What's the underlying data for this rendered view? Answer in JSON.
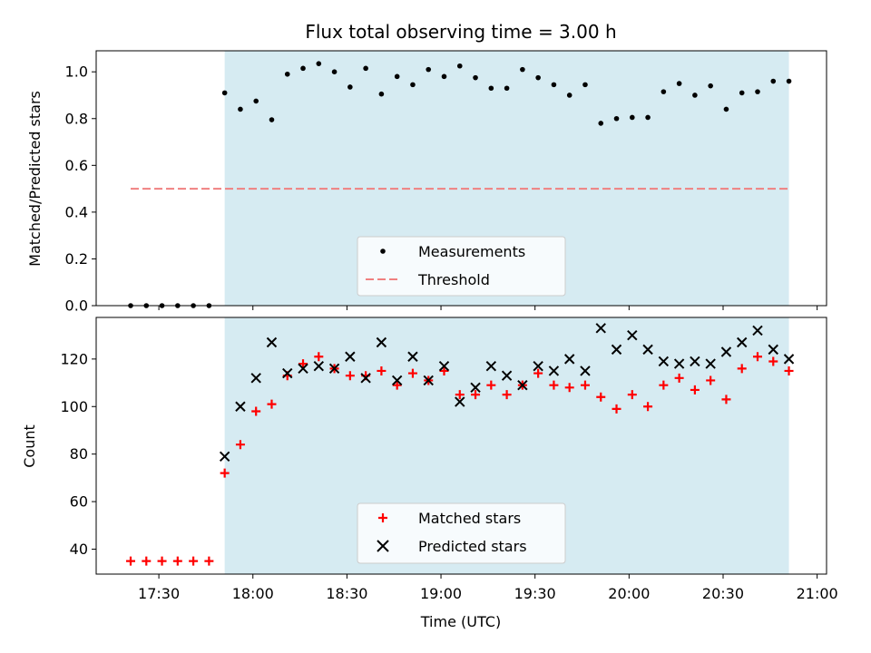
{
  "title": "Flux total observing time = 3.00 h",
  "colors": {
    "shade": "#add8e6",
    "measurement": "#000000",
    "threshold": "#f08080",
    "matched": "#ff0000",
    "predicted": "#000000"
  },
  "chart_data": [
    {
      "type": "scatter",
      "title": "Flux total observing time = 3.00 h",
      "xlabel": "",
      "ylabel": "Matched/Predicted stars",
      "xlim": [
        "17:10",
        "21:03"
      ],
      "ylim": [
        0,
        1.09
      ],
      "yticks": [
        "0.0",
        "0.2",
        "0.4",
        "0.6",
        "0.8",
        "1.0"
      ],
      "grid": false,
      "legend_position": "lower-center",
      "shaded_range": [
        "17:51",
        "20:51"
      ],
      "series": [
        {
          "name": "Measurements",
          "marker": "dot",
          "x": [
            "17:21",
            "17:26",
            "17:31",
            "17:36",
            "17:41",
            "17:46",
            "17:51",
            "17:56",
            "18:01",
            "18:06",
            "18:11",
            "18:16",
            "18:21",
            "18:26",
            "18:31",
            "18:36",
            "18:41",
            "18:46",
            "18:51",
            "18:56",
            "19:01",
            "19:06",
            "19:11",
            "19:16",
            "19:21",
            "19:26",
            "19:31",
            "19:36",
            "19:41",
            "19:46",
            "19:51",
            "19:56",
            "20:01",
            "20:06",
            "20:11",
            "20:16",
            "20:21",
            "20:26",
            "20:31",
            "20:36",
            "20:41",
            "20:46",
            "20:51"
          ],
          "y": [
            0,
            0,
            0,
            0,
            0,
            0,
            0.91,
            0.84,
            0.875,
            0.795,
            0.99,
            1.015,
            1.035,
            1.0,
            0.935,
            1.015,
            0.905,
            0.98,
            0.945,
            1.01,
            0.98,
            1.025,
            0.975,
            0.93,
            0.93,
            1.01,
            0.975,
            0.945,
            0.9,
            0.945,
            0.78,
            0.8,
            0.805,
            0.805,
            0.915,
            0.95,
            0.9,
            0.94,
            0.84,
            0.91,
            0.915,
            0.96,
            0.96
          ]
        },
        {
          "name": "Threshold",
          "marker": "dashed-line",
          "x": [
            "17:21",
            "20:51"
          ],
          "y": [
            0.5,
            0.5
          ]
        }
      ]
    },
    {
      "type": "scatter",
      "title": "",
      "xlabel": "Time (UTC)",
      "ylabel": "Count",
      "xlim": [
        "17:10",
        "21:03"
      ],
      "ylim": [
        29.5,
        137.5
      ],
      "yticks": [
        "40",
        "60",
        "80",
        "100",
        "120"
      ],
      "xticks": [
        "17:30",
        "18:00",
        "18:30",
        "19:00",
        "19:30",
        "20:00",
        "20:30",
        "21:00"
      ],
      "grid": false,
      "legend_position": "lower-center",
      "shaded_range": [
        "17:51",
        "20:51"
      ],
      "series": [
        {
          "name": "Matched stars",
          "marker": "plus",
          "x": [
            "17:21",
            "17:26",
            "17:31",
            "17:36",
            "17:41",
            "17:46",
            "17:51",
            "17:56",
            "18:01",
            "18:06",
            "18:11",
            "18:16",
            "18:21",
            "18:26",
            "18:31",
            "18:36",
            "18:41",
            "18:46",
            "18:51",
            "18:56",
            "19:01",
            "19:06",
            "19:11",
            "19:16",
            "19:21",
            "19:26",
            "19:31",
            "19:36",
            "19:41",
            "19:46",
            "19:51",
            "19:56",
            "20:01",
            "20:06",
            "20:11",
            "20:16",
            "20:21",
            "20:26",
            "20:31",
            "20:36",
            "20:41",
            "20:46",
            "20:51"
          ],
          "y": [
            35,
            35,
            35,
            35,
            35,
            35,
            72,
            84,
            98,
            101,
            113,
            118,
            121,
            116,
            113,
            113,
            115,
            109,
            114,
            111,
            115,
            105,
            105,
            109,
            105,
            109,
            114,
            109,
            108,
            109,
            104,
            99,
            105,
            100,
            109,
            112,
            107,
            111,
            103,
            116,
            121,
            119,
            115
          ]
        },
        {
          "name": "Predicted stars",
          "marker": "x",
          "x": [
            "17:51",
            "17:56",
            "18:01",
            "18:06",
            "18:11",
            "18:16",
            "18:21",
            "18:26",
            "18:31",
            "18:36",
            "18:41",
            "18:46",
            "18:51",
            "18:56",
            "19:01",
            "19:06",
            "19:11",
            "19:16",
            "19:21",
            "19:26",
            "19:31",
            "19:36",
            "19:41",
            "19:46",
            "19:51",
            "19:56",
            "20:01",
            "20:06",
            "20:11",
            "20:16",
            "20:21",
            "20:26",
            "20:31",
            "20:36",
            "20:41",
            "20:46",
            "20:51"
          ],
          "y": [
            79,
            100,
            112,
            127,
            114,
            116,
            117,
            116,
            121,
            112,
            127,
            111,
            121,
            111,
            117,
            102,
            108,
            117,
            113,
            109,
            117,
            115,
            120,
            115,
            133,
            124,
            130,
            124,
            119,
            118,
            119,
            118,
            123,
            127,
            132,
            124,
            120
          ]
        }
      ]
    }
  ]
}
